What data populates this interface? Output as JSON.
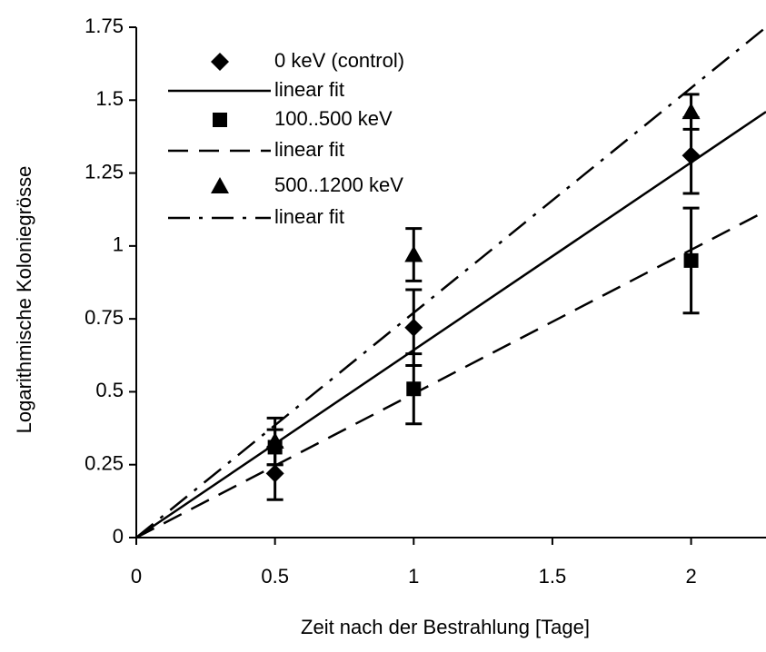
{
  "chart_data": {
    "type": "scatter",
    "x_label": "Zeit nach der Bestrahlung [Tage]",
    "y_label": "Logarithmische Koloniegrösse",
    "xlim": [
      0,
      2.27
    ],
    "ylim": [
      0,
      1.75
    ],
    "xticks": [
      0,
      0.5,
      1,
      1.5,
      2
    ],
    "yticks": [
      0,
      0.25,
      0.5,
      0.75,
      1,
      1.25,
      1.5,
      1.75
    ],
    "legend": "top-left",
    "series": [
      {
        "name": "0 keV (control)",
        "color": "#000000",
        "marker": "diamond",
        "x": [
          0.5,
          1,
          2
        ],
        "values": [
          0.22,
          0.72,
          1.31
        ],
        "errors": [
          0.09,
          0.13,
          0.13
        ]
      },
      {
        "name": "linear fit",
        "color": "#000000",
        "dash": "solid",
        "x": [
          0,
          2.27
        ],
        "values": [
          0,
          1.46
        ]
      },
      {
        "name": "100..500 keV",
        "color": "#000000",
        "marker": "square",
        "x": [
          0.5,
          1,
          2
        ],
        "values": [
          0.31,
          0.51,
          0.95
        ],
        "errors": [
          0.06,
          0.12,
          0.18
        ]
      },
      {
        "name": "linear fit",
        "color": "#000000",
        "dash": "dash",
        "x": [
          0,
          2.27
        ],
        "values": [
          0,
          1.12
        ]
      },
      {
        "name": "500..1200 keV",
        "color": "#000000",
        "marker": "triangle",
        "x": [
          0.5,
          1,
          2
        ],
        "values": [
          0.33,
          0.97,
          1.46
        ],
        "errors": [
          0.08,
          0.09,
          0.06
        ]
      },
      {
        "name": "linear fit",
        "color": "#000000",
        "dash": "dashdot",
        "x": [
          0,
          2.27
        ],
        "values": [
          0,
          1.75
        ]
      }
    ]
  }
}
